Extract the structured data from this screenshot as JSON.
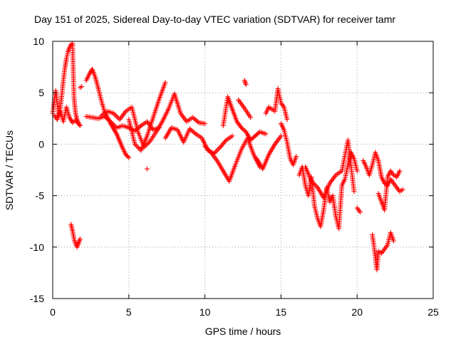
{
  "chart_data": {
    "type": "scatter",
    "title": "Day 151 of 2025, Sidereal Day-to-day VTEC variation (SDTVAR) for receiver tamr",
    "xlabel": "GPS time / hours",
    "ylabel": "SDTVAR / TECUs",
    "xlim": [
      0,
      25
    ],
    "ylim": [
      -15,
      10
    ],
    "xticks": [
      0,
      5,
      10,
      15,
      20,
      25
    ],
    "yticks": [
      -15,
      -10,
      -5,
      0,
      5,
      10
    ],
    "xtick_labels": [
      "0",
      "5",
      "10",
      "15",
      "20",
      "25"
    ],
    "ytick_labels": [
      "-15",
      "-10",
      "-5",
      "0",
      "5",
      "10"
    ],
    "grid": true,
    "marker": "+",
    "color": "#ff0000",
    "series": [
      {
        "name": "SDTVAR",
        "segments": [
          {
            "x": [
              0.0,
              0.1,
              0.2,
              0.3,
              0.4,
              0.5,
              0.6,
              0.7,
              0.8,
              0.9,
              1.0,
              1.1,
              1.2,
              1.3,
              1.4,
              1.5,
              1.6,
              1.7,
              1.8
            ],
            "y": [
              3.0,
              4.2,
              5.2,
              4.0,
              2.8,
              3.6,
              4.8,
              6.2,
              7.4,
              8.3,
              9.0,
              9.4,
              9.7,
              9.8,
              4.5,
              3.0,
              2.4,
              2.0,
              1.8
            ]
          },
          {
            "x": [
              0.1,
              0.3,
              0.5,
              0.7,
              0.9,
              1.1,
              1.3,
              1.5,
              1.7
            ],
            "y": [
              2.8,
              2.4,
              3.2,
              2.2,
              3.6,
              2.6,
              2.1,
              2.3,
              2.0
            ]
          },
          {
            "x": [
              1.2,
              1.3,
              1.4,
              1.5,
              1.6,
              1.7,
              1.8
            ],
            "y": [
              -7.8,
              -8.4,
              -9.2,
              -9.7,
              -10.0,
              -9.6,
              -9.2
            ]
          },
          {
            "x": [
              1.8,
              1.9
            ],
            "y": [
              5.5,
              5.6
            ]
          },
          {
            "x": [
              2.2,
              2.4,
              2.6,
              2.8,
              3.0,
              3.2,
              3.4,
              3.6,
              3.8,
              4.0,
              4.2,
              4.4,
              4.6,
              4.8,
              5.0
            ],
            "y": [
              6.2,
              6.8,
              7.3,
              6.5,
              5.4,
              4.2,
              3.2,
              2.6,
              2.0,
              1.5,
              1.0,
              0.3,
              -0.4,
              -1.0,
              -1.3
            ]
          },
          {
            "x": [
              2.2,
              2.6,
              3.0,
              3.4,
              3.8,
              4.2,
              4.6,
              5.0,
              5.4,
              5.8,
              6.2,
              6.6,
              7.0
            ],
            "y": [
              2.7,
              2.6,
              2.5,
              2.7,
              2.2,
              1.6,
              1.8,
              1.6,
              1.3,
              1.8,
              2.2,
              1.4,
              1.6
            ]
          },
          {
            "x": [
              3.2,
              3.6,
              4.0,
              4.4,
              4.8,
              5.2,
              5.6,
              6.0,
              6.4,
              6.8,
              7.2,
              7.6,
              8.0,
              8.4,
              8.8,
              9.2,
              9.6,
              10.0
            ],
            "y": [
              2.8,
              3.2,
              3.0,
              2.4,
              3.2,
              3.6,
              1.2,
              -0.3,
              0.3,
              1.2,
              2.2,
              3.4,
              4.9,
              3.0,
              2.2,
              2.6,
              2.1,
              2.0
            ]
          },
          {
            "x": [
              5.0,
              5.4,
              5.8,
              6.2,
              6.6,
              7.0,
              7.4
            ],
            "y": [
              2.4,
              0.0,
              -0.6,
              0.8,
              2.6,
              4.4,
              6.0
            ]
          },
          {
            "x": [
              6.2
            ],
            "y": [
              -2.4
            ]
          },
          {
            "x": [
              7.4,
              7.8,
              8.2,
              8.6,
              9.0,
              9.4,
              9.8,
              10.2,
              10.6,
              11.0,
              11.4,
              11.8
            ],
            "y": [
              0.6,
              1.6,
              1.4,
              0.2,
              1.5,
              1.0,
              0.6,
              -0.6,
              -0.9,
              -0.3,
              0.4,
              0.8
            ]
          },
          {
            "x": [
              10.0,
              10.4,
              10.8,
              11.2,
              11.6,
              12.0,
              12.4,
              12.8,
              13.2,
              13.6
            ],
            "y": [
              -0.2,
              -0.8,
              -1.6,
              -2.6,
              -3.6,
              -2.0,
              -0.5,
              0.6,
              -1.0,
              -2.2
            ]
          },
          {
            "x": [
              11.2,
              11.5,
              11.8,
              12.1,
              12.4,
              12.7,
              13.0,
              13.3,
              13.6,
              14.0
            ],
            "y": [
              1.8,
              4.6,
              3.4,
              2.2,
              1.6,
              1.2,
              0.4,
              0.8,
              1.2,
              1.0
            ]
          },
          {
            "x": [
              12.2,
              12.6,
              13.0
            ],
            "y": [
              4.3,
              3.5,
              2.6
            ]
          },
          {
            "x": [
              12.6,
              12.7
            ],
            "y": [
              6.2,
              5.8
            ]
          },
          {
            "x": [
              13.4,
              13.8,
              14.2,
              14.6,
              15.0
            ],
            "y": [
              -1.4,
              -2.4,
              -1.0,
              0.0,
              0.8
            ]
          },
          {
            "x": [
              14.0,
              14.2,
              14.4,
              14.6,
              14.8,
              15.0,
              15.2,
              15.4
            ],
            "y": [
              3.0,
              3.6,
              3.4,
              3.2,
              5.4,
              4.0,
              3.6,
              2.4
            ]
          },
          {
            "x": [
              15.0,
              15.2,
              15.4,
              15.6,
              15.8,
              16.0
            ],
            "y": [
              2.0,
              1.4,
              0.2,
              -1.4,
              -2.0,
              -1.2
            ]
          },
          {
            "x": [
              16.2,
              16.4,
              16.6,
              16.8,
              17.0,
              17.2,
              17.4,
              17.6,
              17.8,
              18.0,
              18.2,
              18.4,
              18.6,
              18.8,
              19.0,
              19.2,
              19.4,
              19.6,
              19.8,
              20.0
            ],
            "y": [
              -3.0,
              -2.2,
              -4.0,
              -5.0,
              -3.2,
              -6.0,
              -7.2,
              -8.0,
              -6.4,
              -4.2,
              -5.6,
              -5.0,
              -7.0,
              -8.2,
              -4.0,
              -3.4,
              -2.0,
              -0.8,
              -1.4,
              -2.6
            ]
          },
          {
            "x": [
              16.6,
              17.0,
              17.4,
              17.8,
              18.2,
              18.6,
              19.0,
              19.4,
              19.8
            ],
            "y": [
              -2.2,
              -3.6,
              -4.2,
              -5.2,
              -3.8,
              -3.0,
              -2.6,
              0.4,
              -4.6
            ]
          },
          {
            "x": [
              20.0,
              20.2
            ],
            "y": [
              -6.2,
              -6.6
            ]
          },
          {
            "x": [
              20.4,
              20.6,
              20.8,
              21.0,
              21.2,
              21.4,
              21.6,
              21.8,
              22.0,
              22.2,
              22.4,
              22.6,
              22.8,
              23.0
            ],
            "y": [
              -1.6,
              -2.2,
              -3.0,
              -2.0,
              -0.8,
              -1.6,
              -3.2,
              -3.8,
              -4.0,
              -3.4,
              -3.8,
              -4.2,
              -4.6,
              -4.4
            ]
          },
          {
            "x": [
              21.0,
              21.1,
              21.2,
              21.3,
              21.4,
              21.6,
              21.8,
              22.0,
              22.2,
              22.4
            ],
            "y": [
              -8.8,
              -9.8,
              -11.0,
              -12.2,
              -10.4,
              -10.6,
              -10.2,
              -9.8,
              -8.6,
              -9.4
            ]
          },
          {
            "x": [
              21.4,
              21.6,
              21.8,
              22.0,
              22.2,
              22.4,
              22.6,
              22.8
            ],
            "y": [
              -4.8,
              -5.6,
              -6.4,
              -3.2,
              -2.6,
              -3.0,
              -3.2,
              -2.6
            ]
          }
        ]
      }
    ]
  }
}
